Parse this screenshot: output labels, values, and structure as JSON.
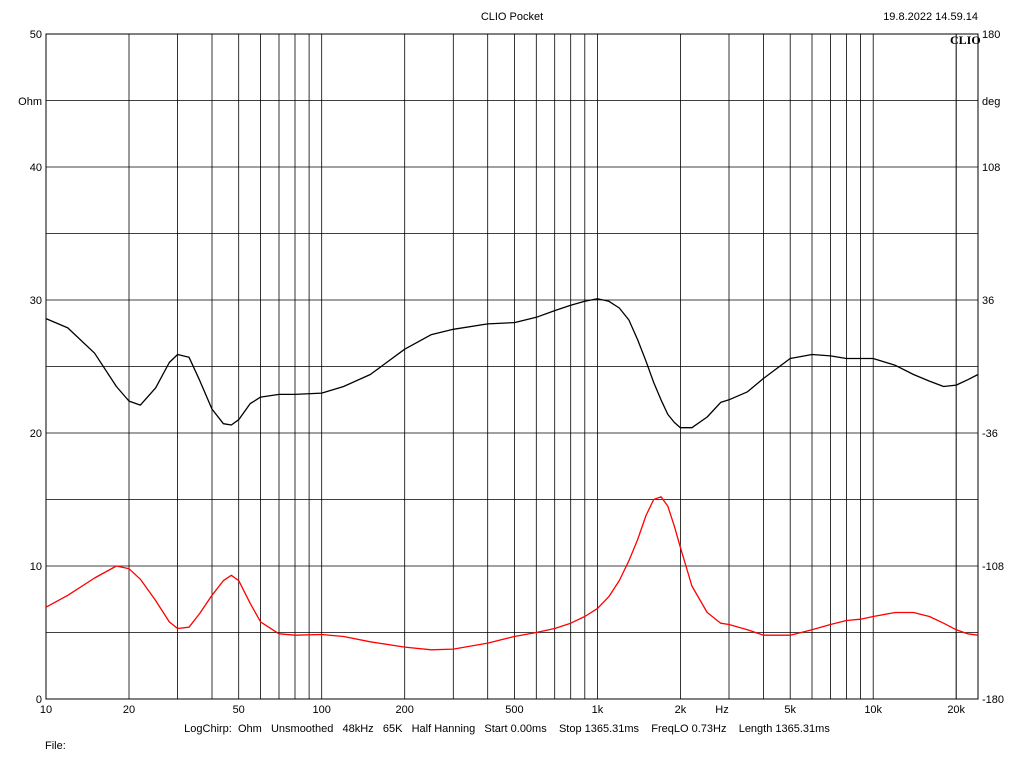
{
  "header": {
    "title": "CLIO Pocket",
    "timestamp": "19.8.2022 14.59.14",
    "logo_text": "CLIO"
  },
  "footer": {
    "info": "LogChirp:  Ohm   Unsmoothed   48kHz   65K   Half Hanning   Start 0.00ms    Stop 1365.31ms    FreqLO 0.73Hz    Length 1365.31ms",
    "file_label": "File:"
  },
  "chart_data": {
    "type": "line",
    "title": "CLIO Pocket",
    "xlabel": "Hz",
    "ylabel": "Ohm",
    "y2label": "deg",
    "x_scale": "log",
    "xlim": [
      10,
      24000
    ],
    "ylim": [
      0,
      50
    ],
    "y2lim": [
      -180,
      180
    ],
    "grid": true,
    "x_tick_labels": [
      {
        "value": 10,
        "label": "10"
      },
      {
        "value": 20,
        "label": "20"
      },
      {
        "value": 50,
        "label": "50"
      },
      {
        "value": 100,
        "label": "100"
      },
      {
        "value": 200,
        "label": "200"
      },
      {
        "value": 500,
        "label": "500"
      },
      {
        "value": 1000,
        "label": "1k"
      },
      {
        "value": 2000,
        "label": "2k"
      },
      {
        "value": 5000,
        "label": "5k"
      },
      {
        "value": 10000,
        "label": "10k"
      },
      {
        "value": 20000,
        "label": "20k"
      }
    ],
    "y_ticks": [
      0,
      10,
      20,
      30,
      40,
      50
    ],
    "y2_ticks": [
      -180,
      -108,
      -36,
      36,
      108,
      180
    ],
    "series": [
      {
        "color": "#ff0000",
        "x": [
          10,
          12,
          15,
          18,
          20,
          22,
          25,
          28,
          30,
          33,
          36,
          40,
          44,
          47,
          50,
          55,
          60,
          70,
          80,
          100,
          120,
          150,
          200,
          250,
          300,
          400,
          500,
          600,
          700,
          800,
          900,
          1000,
          1100,
          1200,
          1300,
          1400,
          1500,
          1600,
          1700,
          1800,
          1900,
          2000,
          2200,
          2500,
          2800,
          3000,
          3500,
          4000,
          5000,
          6000,
          7000,
          8000,
          9000,
          10000,
          12000,
          14000,
          16000,
          18000,
          20000,
          22000,
          24000
        ],
        "values": [
          6.9,
          7.8,
          9.1,
          10.0,
          9.8,
          9.0,
          7.4,
          5.8,
          5.3,
          5.4,
          6.4,
          7.8,
          8.9,
          9.3,
          8.9,
          7.2,
          5.8,
          4.9,
          4.8,
          4.85,
          4.7,
          4.3,
          3.9,
          3.7,
          3.75,
          4.2,
          4.7,
          5.0,
          5.3,
          5.7,
          6.2,
          6.8,
          7.7,
          8.9,
          10.4,
          12.0,
          13.8,
          15.0,
          15.2,
          14.5,
          13.0,
          11.4,
          8.5,
          6.5,
          5.7,
          5.6,
          5.2,
          4.8,
          4.8,
          5.2,
          5.6,
          5.9,
          6.0,
          6.2,
          6.5,
          6.5,
          6.2,
          5.7,
          5.2,
          4.9,
          4.8
        ]
      },
      {
        "color": "#000000",
        "x": [
          10,
          12,
          15,
          18,
          20,
          22,
          25,
          28,
          30,
          33,
          36,
          40,
          44,
          47,
          50,
          55,
          60,
          70,
          80,
          100,
          120,
          150,
          200,
          250,
          300,
          400,
          500,
          600,
          700,
          800,
          900,
          1000,
          1100,
          1200,
          1300,
          1400,
          1500,
          1600,
          1700,
          1800,
          1900,
          2000,
          2200,
          2500,
          2800,
          3000,
          3500,
          4000,
          5000,
          6000,
          7000,
          8000,
          9000,
          10000,
          12000,
          14000,
          16000,
          18000,
          20000,
          22000,
          24000
        ],
        "values": [
          28.6,
          27.9,
          26.0,
          23.5,
          22.4,
          22.1,
          23.4,
          25.3,
          25.9,
          25.7,
          24.0,
          21.8,
          20.7,
          20.6,
          21.0,
          22.2,
          22.7,
          22.9,
          22.9,
          23.0,
          23.5,
          24.4,
          26.3,
          27.4,
          27.8,
          28.2,
          28.3,
          28.7,
          29.2,
          29.6,
          29.9,
          30.1,
          29.9,
          29.4,
          28.5,
          27.0,
          25.4,
          23.8,
          22.5,
          21.4,
          20.8,
          20.4,
          20.4,
          21.2,
          22.3,
          22.5,
          23.1,
          24.1,
          25.6,
          25.9,
          25.8,
          25.6,
          25.6,
          25.6,
          25.1,
          24.4,
          23.9,
          23.5,
          23.6,
          24.0,
          24.4
        ]
      }
    ]
  }
}
